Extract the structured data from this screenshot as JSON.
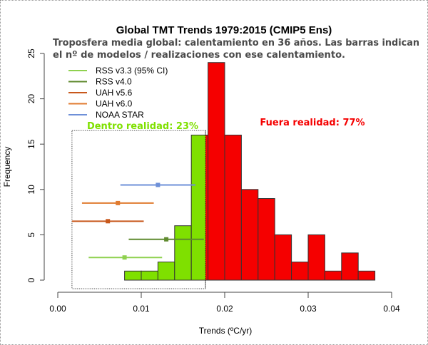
{
  "chart_data": {
    "type": "bar",
    "title": "Global TMT Trends 1979:2015 (CMIP5 Ens)",
    "subtitle_lines": [
      "Troposfera media global:  calentamiento en 36 años. Las barras indican",
      "el nº de modelos / realizaciones con ese calentamiento."
    ],
    "xlabel": "Trends (ºC/yr)",
    "ylabel": "Frequency",
    "xlim": [
      0,
      0.04
    ],
    "ylim": [
      0,
      25
    ],
    "xticks": [
      "0.00",
      "0.01",
      "0.02",
      "0.03",
      "0.04"
    ],
    "yticks": [
      "0",
      "5",
      "10",
      "15",
      "20",
      "25"
    ],
    "bin_width": 0.002,
    "threshold": 0.0177,
    "bins": [
      {
        "start": 0.008,
        "count": 1
      },
      {
        "start": 0.01,
        "count": 1
      },
      {
        "start": 0.012,
        "count": 2
      },
      {
        "start": 0.014,
        "count": 6
      },
      {
        "start": 0.016,
        "count": 16
      },
      {
        "start": 0.018,
        "count": 24
      },
      {
        "start": 0.02,
        "count": 16
      },
      {
        "start": 0.022,
        "count": 10
      },
      {
        "start": 0.024,
        "count": 9
      },
      {
        "start": 0.026,
        "count": 5
      },
      {
        "start": 0.028,
        "count": 2
      },
      {
        "start": 0.03,
        "count": 5
      },
      {
        "start": 0.032,
        "count": 1
      },
      {
        "start": 0.034,
        "count": 3
      },
      {
        "start": 0.036,
        "count": 1
      }
    ],
    "inside_color": "#7fe000",
    "outside_color": "#f50000",
    "observations": [
      {
        "name": "RSS v3.3 (95% CI)",
        "color": "#8fd14f",
        "center": 0.008,
        "low": 0.0037,
        "high": 0.0125,
        "y": 2.5
      },
      {
        "name": "RSS v4.0",
        "color": "#5f8a2e",
        "center": 0.013,
        "low": 0.0085,
        "high": 0.0175,
        "y": 4.5
      },
      {
        "name": "UAH v5.6",
        "color": "#c8581c",
        "center": 0.006,
        "low": 0.0017,
        "high": 0.0103,
        "y": 6.5
      },
      {
        "name": "UAH v6.0",
        "color": "#e07b30",
        "center": 0.0072,
        "low": 0.0029,
        "high": 0.0115,
        "y": 8.5
      },
      {
        "name": "NOAA STAR",
        "color": "#6e90d8",
        "center": 0.012,
        "low": 0.0075,
        "high": 0.0165,
        "y": 10.5
      }
    ],
    "inside_box": {
      "xmin": 0.0017,
      "xmax": 0.0177,
      "ymax": 16.5
    },
    "annotations": {
      "inside": "Dentro realidad: 23%",
      "outside": "Fuera realidad: 77%"
    },
    "legend_placement": "top-left"
  }
}
